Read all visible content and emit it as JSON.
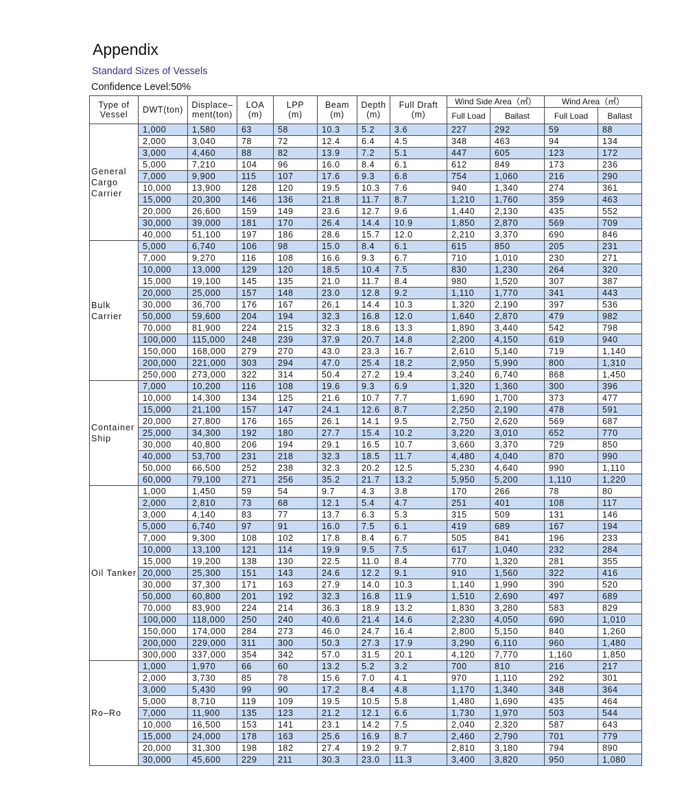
{
  "header": {
    "title": "Appendix",
    "subtitle": "Standard Sizes of Vessels",
    "confidence": "Confidence Level:50%"
  },
  "table": {
    "columns": [
      "Type of\nVessel",
      "DWT(ton)",
      "Displace–\nment(ton)",
      "LOA\n(m)",
      "LPP\n(m)",
      "Beam\n(m)",
      "Depth\n(m)",
      "Full Draft\n(m)"
    ],
    "group_columns": [
      {
        "label": "Wind Side Area（㎡）",
        "sub": [
          "Full Load",
          "Ballast"
        ]
      },
      {
        "label": "Wind Area（㎡）",
        "sub": [
          "Full Load",
          "Ballast"
        ]
      }
    ],
    "groups": [
      {
        "type": "General\nCargo\nCarrier",
        "rows": [
          [
            "1,000",
            "1,580",
            "63",
            "58",
            "10.3",
            "5.2",
            "3.6",
            "227",
            "292",
            "59",
            "88"
          ],
          [
            "2,000",
            "3,040",
            "78",
            "72",
            "12.4",
            "6.4",
            "4.5",
            "348",
            "463",
            "94",
            "134"
          ],
          [
            "3,000",
            "4,460",
            "88",
            "82",
            "13.9",
            "7.2",
            "5.1",
            "447",
            "605",
            "123",
            "172"
          ],
          [
            "5,000",
            "7,210",
            "104",
            "96",
            "16.0",
            "8.4",
            "6.1",
            "612",
            "849",
            "173",
            "236"
          ],
          [
            "7,000",
            "9,900",
            "115",
            "107",
            "17.6",
            "9.3",
            "6.8",
            "754",
            "1,060",
            "216",
            "290"
          ],
          [
            "10,000",
            "13,900",
            "128",
            "120",
            "19.5",
            "10.3",
            "7.6",
            "940",
            "1,340",
            "274",
            "361"
          ],
          [
            "15,000",
            "20,300",
            "146",
            "136",
            "21.8",
            "11.7",
            "8.7",
            "1,210",
            "1,760",
            "359",
            "463"
          ],
          [
            "20,000",
            "26,600",
            "159",
            "149",
            "23.6",
            "12.7",
            "9.6",
            "1,440",
            "2,130",
            "435",
            "552"
          ],
          [
            "30,000",
            "39,000",
            "181",
            "170",
            "26.4",
            "14.4",
            "10.9",
            "1,850",
            "2,870",
            "569",
            "709"
          ],
          [
            "40,000",
            "51,100",
            "197",
            "186",
            "28.6",
            "15.7",
            "12.0",
            "2,210",
            "3,370",
            "690",
            "846"
          ]
        ]
      },
      {
        "type": "Bulk\nCarrier",
        "rows": [
          [
            "5,000",
            "6,740",
            "106",
            "98",
            "15.0",
            "8.4",
            "6.1",
            "615",
            "850",
            "205",
            "231"
          ],
          [
            "7,000",
            "9,270",
            "116",
            "108",
            "16.6",
            "9.3",
            "6.7",
            "710",
            "1,010",
            "230",
            "271"
          ],
          [
            "10,000",
            "13,000",
            "129",
            "120",
            "18.5",
            "10.4",
            "7.5",
            "830",
            "1,230",
            "264",
            "320"
          ],
          [
            "15,000",
            "19,100",
            "145",
            "135",
            "21.0",
            "11.7",
            "8.4",
            "980",
            "1,520",
            "307",
            "387"
          ],
          [
            "20,000",
            "25,000",
            "157",
            "148",
            "23.0",
            "12.8",
            "9.2",
            "1,110",
            "1,770",
            "341",
            "443"
          ],
          [
            "30,000",
            "36,700",
            "176",
            "167",
            "26.1",
            "14.4",
            "10.3",
            "1,320",
            "2,190",
            "397",
            "536"
          ],
          [
            "50,000",
            "59,600",
            "204",
            "194",
            "32.3",
            "16.8",
            "12.0",
            "1,640",
            "2,870",
            "479",
            "982"
          ],
          [
            "70,000",
            "81,900",
            "224",
            "215",
            "32.3",
            "18.6",
            "13.3",
            "1,890",
            "3,440",
            "542",
            "798"
          ],
          [
            "100,000",
            "115,000",
            "248",
            "239",
            "37.9",
            "20.7",
            "14.8",
            "2,200",
            "4,150",
            "619",
            "940"
          ],
          [
            "150,000",
            "168,000",
            "279",
            "270",
            "43.0",
            "23.3",
            "16.7",
            "2,610",
            "5,140",
            "719",
            "1,140"
          ],
          [
            "200,000",
            "221,000",
            "303",
            "294",
            "47.0",
            "25.4",
            "18.2",
            "2,950",
            "5,990",
            "800",
            "1,310"
          ],
          [
            "250,000",
            "273,000",
            "322",
            "314",
            "50.4",
            "27.2",
            "19.4",
            "3,240",
            "6,740",
            "868",
            "1,450"
          ]
        ]
      },
      {
        "type": "Container\nShip",
        "rows": [
          [
            "7,000",
            "10,200",
            "116",
            "108",
            "19.6",
            "9.3",
            "6.9",
            "1,320",
            "1,360",
            "300",
            "396"
          ],
          [
            "10,000",
            "14,300",
            "134",
            "125",
            "21.6",
            "10.7",
            "7.7",
            "1,690",
            "1,700",
            "373",
            "477"
          ],
          [
            "15,000",
            "21,100",
            "157",
            "147",
            "24.1",
            "12.6",
            "8.7",
            "2,250",
            "2,190",
            "478",
            "591"
          ],
          [
            "20,000",
            "27,800",
            "176",
            "165",
            "26.1",
            "14.1",
            "9.5",
            "2,750",
            "2,620",
            "569",
            "687"
          ],
          [
            "25,000",
            "34,300",
            "192",
            "180",
            "27.7",
            "15.4",
            "10.2",
            "3,220",
            "3,010",
            "652",
            "770"
          ],
          [
            "30,000",
            "40,800",
            "206",
            "194",
            "29.1",
            "16.5",
            "10.7",
            "3,660",
            "3,370",
            "729",
            "850"
          ],
          [
            "40,000",
            "53,700",
            "231",
            "218",
            "32.3",
            "18.5",
            "11.7",
            "4,480",
            "4,040",
            "870",
            "990"
          ],
          [
            "50,000",
            "66,500",
            "252",
            "238",
            "32.3",
            "20.2",
            "12.5",
            "5,230",
            "4,640",
            "990",
            "1,110"
          ],
          [
            "60,000",
            "79,100",
            "271",
            "256",
            "35.2",
            "21.7",
            "13.2",
            "5,950",
            "5,200",
            "1,110",
            "1,220"
          ]
        ]
      },
      {
        "type": "Oil Tanker",
        "rows": [
          [
            "1,000",
            "1,450",
            "59",
            "54",
            "9.7",
            "4.3",
            "3.8",
            "170",
            "266",
            "78",
            "80"
          ],
          [
            "2,000",
            "2,810",
            "73",
            "68",
            "12.1",
            "5.4",
            "4.7",
            "251",
            "401",
            "108",
            "117"
          ],
          [
            "3,000",
            "4,140",
            "83",
            "77",
            "13.7",
            "6.3",
            "5.3",
            "315",
            "509",
            "131",
            "146"
          ],
          [
            "5,000",
            "6,740",
            "97",
            "91",
            "16.0",
            "7.5",
            "6.1",
            "419",
            "689",
            "167",
            "194"
          ],
          [
            "7,000",
            "9,300",
            "108",
            "102",
            "17.8",
            "8.4",
            "6.7",
            "505",
            "841",
            "196",
            "233"
          ],
          [
            "10,000",
            "13,100",
            "121",
            "114",
            "19.9",
            "9.5",
            "7.5",
            "617",
            "1,040",
            "232",
            "284"
          ],
          [
            "15,000",
            "19,200",
            "138",
            "130",
            "22.5",
            "11.0",
            "8.4",
            "770",
            "1,320",
            "281",
            "355"
          ],
          [
            "20,000",
            "25,300",
            "151",
            "143",
            "24.6",
            "12.2",
            "9.1",
            "910",
            "1,560",
            "322",
            "416"
          ],
          [
            "30,000",
            "37,300",
            "171",
            "163",
            "27.9",
            "14.0",
            "10.3",
            "1,140",
            "1,990",
            "390",
            "520"
          ],
          [
            "50,000",
            "60,800",
            "201",
            "192",
            "32.3",
            "16.8",
            "11.9",
            "1,510",
            "2,690",
            "497",
            "689"
          ],
          [
            "70,000",
            "83,900",
            "224",
            "214",
            "36.3",
            "18.9",
            "13.2",
            "1,830",
            "3,280",
            "583",
            "829"
          ],
          [
            "100,000",
            "118,000",
            "250",
            "240",
            "40.6",
            "21.4",
            "14.6",
            "2,230",
            "4,050",
            "690",
            "1,010"
          ],
          [
            "150,000",
            "174,000",
            "284",
            "273",
            "46.0",
            "24.7",
            "16.4",
            "2,800",
            "5,150",
            "840",
            "1,260"
          ],
          [
            "200,000",
            "229,000",
            "311",
            "300",
            "50.3",
            "27.3",
            "17.9",
            "3,290",
            "6,110",
            "960",
            "1,480"
          ],
          [
            "300,000",
            "337,000",
            "354",
            "342",
            "57.0",
            "31.5",
            "20.1",
            "4,120",
            "7,770",
            "1,160",
            "1,850"
          ]
        ]
      },
      {
        "type": "Ro–Ro",
        "rows": [
          [
            "1,000",
            "1,970",
            "66",
            "60",
            "13.2",
            "5.2",
            "3.2",
            "700",
            "810",
            "216",
            "217"
          ],
          [
            "2,000",
            "3,730",
            "85",
            "78",
            "15.6",
            "7.0",
            "4.1",
            "970",
            "1,110",
            "292",
            "301"
          ],
          [
            "3,000",
            "5,430",
            "99",
            "90",
            "17.2",
            "8.4",
            "4.8",
            "1,170",
            "1,340",
            "348",
            "364"
          ],
          [
            "5,000",
            "8,710",
            "119",
            "109",
            "19.5",
            "10.5",
            "5.8",
            "1,480",
            "1,690",
            "435",
            "464"
          ],
          [
            "7,000",
            "11,900",
            "135",
            "123",
            "21.2",
            "12.1",
            "6.6",
            "1,730",
            "1,970",
            "503",
            "544"
          ],
          [
            "10,000",
            "16,500",
            "153",
            "141",
            "23.1",
            "14.2",
            "7.5",
            "2,040",
            "2,320",
            "587",
            "643"
          ],
          [
            "15,000",
            "24,000",
            "178",
            "163",
            "25.6",
            "16.9",
            "8.7",
            "2,460",
            "2,790",
            "701",
            "779"
          ],
          [
            "20,000",
            "31,300",
            "198",
            "182",
            "27.4",
            "19.2",
            "9.7",
            "2,810",
            "3,180",
            "794",
            "890"
          ],
          [
            "30,000",
            "45,600",
            "229",
            "211",
            "30.3",
            "23.0",
            "11.3",
            "3,400",
            "3,820",
            "950",
            "1,080"
          ]
        ]
      }
    ]
  }
}
